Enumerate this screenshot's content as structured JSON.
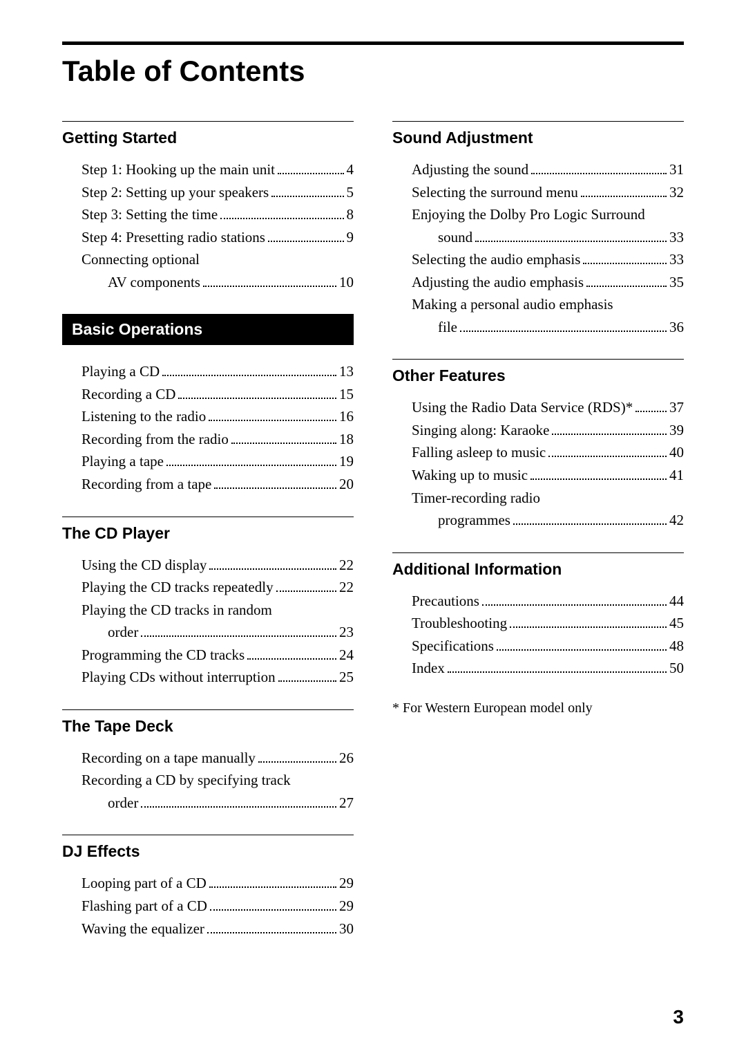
{
  "title": "Table of Contents",
  "page_number": "3",
  "footnote": "* For Western European model only",
  "columns": [
    {
      "sections": [
        {
          "heading": "Getting Started",
          "boxed": false,
          "entries": [
            {
              "label": "Step 1:  Hooking up the main unit",
              "page": "4"
            },
            {
              "label": "Step 2:  Setting up your speakers",
              "page": "5"
            },
            {
              "label": "Step 3:  Setting the time",
              "page": "8"
            },
            {
              "label": "Step 4:  Presetting radio stations",
              "page": "9"
            },
            {
              "label": "Connecting optional",
              "page": null
            },
            {
              "label": "AV components",
              "page": "10",
              "sub": true
            }
          ]
        },
        {
          "heading": "Basic Operations",
          "boxed": true,
          "entries": [
            {
              "label": "Playing a CD",
              "page": "13"
            },
            {
              "label": "Recording a CD",
              "page": "15"
            },
            {
              "label": "Listening to the radio",
              "page": "16"
            },
            {
              "label": "Recording from the radio",
              "page": "18"
            },
            {
              "label": "Playing a tape",
              "page": "19"
            },
            {
              "label": "Recording from a tape",
              "page": "20"
            }
          ]
        },
        {
          "heading": "The CD Player",
          "boxed": false,
          "entries": [
            {
              "label": "Using the CD display",
              "page": "22"
            },
            {
              "label": "Playing the CD tracks repeatedly",
              "page": "22"
            },
            {
              "label": "Playing the CD tracks in random",
              "page": null
            },
            {
              "label": "order",
              "page": "23",
              "sub": true
            },
            {
              "label": "Programming the CD tracks",
              "page": "24"
            },
            {
              "label": "Playing CDs without interruption",
              "page": "25"
            }
          ]
        },
        {
          "heading": "The Tape Deck",
          "boxed": false,
          "entries": [
            {
              "label": "Recording on a tape manually",
              "page": "26"
            },
            {
              "label": "Recording a CD by specifying track",
              "page": null
            },
            {
              "label": "order",
              "page": "27",
              "sub": true
            }
          ]
        },
        {
          "heading": "DJ Effects",
          "boxed": false,
          "entries": [
            {
              "label": "Looping part of a CD",
              "page": "29"
            },
            {
              "label": "Flashing part of a CD",
              "page": "29"
            },
            {
              "label": "Waving the equalizer",
              "page": "30"
            }
          ]
        }
      ]
    },
    {
      "sections": [
        {
          "heading": "Sound Adjustment",
          "boxed": false,
          "entries": [
            {
              "label": "Adjusting the sound",
              "page": "31"
            },
            {
              "label": "Selecting the surround menu",
              "page": "32"
            },
            {
              "label": "Enjoying the Dolby Pro Logic Surround",
              "page": null
            },
            {
              "label": "sound",
              "page": "33",
              "sub": true
            },
            {
              "label": "Selecting the audio emphasis",
              "page": "33"
            },
            {
              "label": "Adjusting the audio emphasis",
              "page": "35"
            },
            {
              "label": "Making a personal audio emphasis",
              "page": null
            },
            {
              "label": "file",
              "page": "36",
              "sub": true
            }
          ]
        },
        {
          "heading": "Other Features",
          "boxed": false,
          "entries": [
            {
              "label": "Using the Radio Data Service (RDS)*",
              "page": "37"
            },
            {
              "label": "Singing along:  Karaoke",
              "page": "39"
            },
            {
              "label": "Falling asleep to music",
              "page": "40"
            },
            {
              "label": "Waking up to music",
              "page": "41"
            },
            {
              "label": "Timer-recording radio",
              "page": null
            },
            {
              "label": "programmes",
              "page": "42",
              "sub": true
            }
          ]
        },
        {
          "heading": "Additional Information",
          "boxed": false,
          "entries": [
            {
              "label": "Precautions",
              "page": "44"
            },
            {
              "label": "Troubleshooting",
              "page": "45"
            },
            {
              "label": "Specifications",
              "page": "48"
            },
            {
              "label": "Index",
              "page": "50"
            }
          ]
        }
      ],
      "footnote": true
    }
  ]
}
